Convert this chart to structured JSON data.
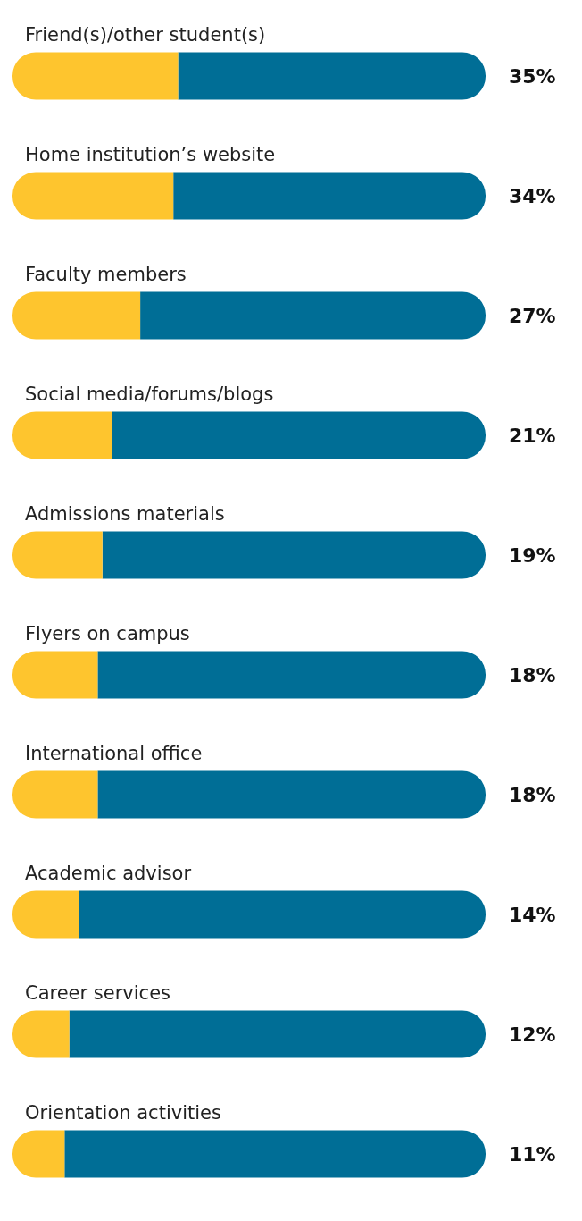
{
  "chart_data": {
    "type": "bar",
    "orientation": "horizontal",
    "stacked": true,
    "xlim": [
      0,
      100
    ],
    "tick_labels": "y",
    "categories": [
      "Friend(s)/other student(s)",
      "Home institution’s website",
      "Faculty members",
      "Social media/forums/blogs",
      "Admissions materials",
      "Flyers on campus",
      "International office",
      "Academic advisor",
      "Career services",
      "Orientation activities"
    ],
    "series": [
      {
        "color": "#fec52e",
        "values": [
          35,
          34,
          27,
          21,
          19,
          18,
          18,
          14,
          12,
          11
        ],
        "value_labels": [
          "35%",
          "34%",
          "27%",
          "21%",
          "19%",
          "18%",
          "18%",
          "14%",
          "12%",
          "11%"
        ]
      },
      {
        "color": "#006e96",
        "values": [
          65,
          66,
          73,
          79,
          81,
          82,
          82,
          86,
          88,
          89
        ]
      }
    ]
  }
}
